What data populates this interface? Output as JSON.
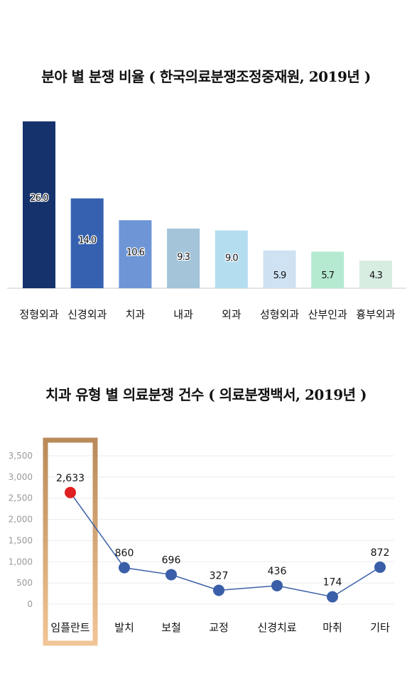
{
  "chart_data": [
    {
      "type": "bar",
      "title": "분야 별 분쟁 비율 ( 한국의료분쟁조정중재원, 2019년 )",
      "categories": [
        "정형외과",
        "신경외과",
        "치과",
        "내과",
        "외과",
        "성형외과",
        "산부인과",
        "흉부외과"
      ],
      "values": [
        26.0,
        14.0,
        10.6,
        9.3,
        9.0,
        5.9,
        5.7,
        4.3
      ],
      "value_labels": [
        "26.0",
        "14.0",
        "10.6",
        "9.3",
        "9.0",
        "5.9",
        "5.7",
        "4.3"
      ],
      "colors": [
        "#15326d",
        "#3561b0",
        "#6e96d6",
        "#a3c4d9",
        "#b4ddf0",
        "#cfe2f3",
        "#b6ead0",
        "#d8ede2"
      ],
      "grid": false
    },
    {
      "type": "line",
      "title": "치과 유형 별 의료분쟁 건수 ( 의료분쟁백서, 2019년 )",
      "categories": [
        "임플란트",
        "발치",
        "보철",
        "교정",
        "신경치료",
        "마취",
        "기타"
      ],
      "values": [
        2633,
        860,
        696,
        327,
        436,
        174,
        872
      ],
      "value_labels": [
        "2,633",
        "860",
        "696",
        "327",
        "436",
        "174",
        "872"
      ],
      "ylim": [
        0,
        3500
      ],
      "yticks": [
        0,
        500,
        1000,
        1500,
        2000,
        2500,
        3000,
        3500
      ],
      "ytick_labels": [
        "0",
        "500",
        "1,000",
        "1,500",
        "2,000",
        "2,500",
        "3,000",
        "3,500"
      ],
      "grid": true,
      "highlight_category": "임플란트",
      "colors": {
        "line": "#3a5fa8",
        "point": "#3a5fa8",
        "highlight_point": "#e02020",
        "highlight_frame": "#c9a57a"
      }
    }
  ]
}
